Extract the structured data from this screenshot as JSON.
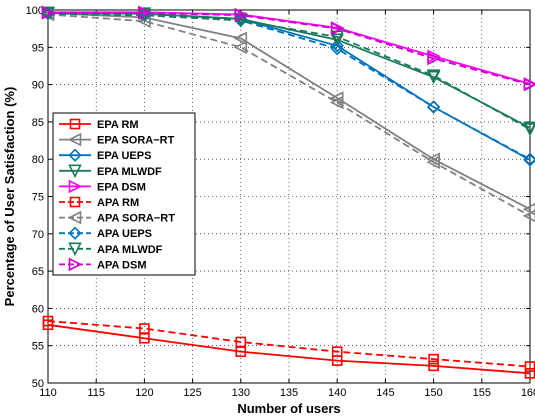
{
  "chart_data": {
    "type": "line",
    "xlabel": "Number of users",
    "ylabel": "Percentage of User Satisfaction (%)",
    "xlim": [
      110,
      160
    ],
    "ylim": [
      50,
      100
    ],
    "xticks": [
      110,
      115,
      120,
      125,
      130,
      135,
      140,
      145,
      150,
      155,
      160
    ],
    "yticks": [
      50,
      55,
      60,
      65,
      70,
      75,
      80,
      85,
      90,
      95,
      100
    ],
    "grid": true,
    "legend_position": "left",
    "x": [
      110,
      120,
      130,
      140,
      150,
      160
    ],
    "series": [
      {
        "name": "EPA RM",
        "color": "#ff0000",
        "style": "solid",
        "marker": "square",
        "values": [
          57.8,
          56.0,
          54.2,
          53.0,
          52.3,
          51.3
        ]
      },
      {
        "name": "EPA SORA−RT",
        "color": "#808080",
        "style": "solid",
        "marker": "triangle-left",
        "values": [
          99.6,
          99.0,
          96.2,
          88.2,
          80.0,
          73.3
        ]
      },
      {
        "name": "EPA UEPS",
        "color": "#0072bd",
        "style": "solid",
        "marker": "diamond",
        "values": [
          99.6,
          99.5,
          98.8,
          95.2,
          87.0,
          79.9
        ]
      },
      {
        "name": "EPA MLWDF",
        "color": "#1a7a5e",
        "style": "solid",
        "marker": "triangle-down",
        "values": [
          99.6,
          99.5,
          98.8,
          96.0,
          91.0,
          84.2
        ]
      },
      {
        "name": "EPA DSM",
        "color": "#ff00ff",
        "style": "solid",
        "marker": "triangle-right",
        "values": [
          99.7,
          99.7,
          99.4,
          97.6,
          93.8,
          90.1
        ]
      },
      {
        "name": "APA RM",
        "color": "#ff0000",
        "style": "dashed",
        "marker": "square",
        "values": [
          58.3,
          57.3,
          55.5,
          54.2,
          53.2,
          52.2
        ]
      },
      {
        "name": "APA SORA−RT",
        "color": "#808080",
        "style": "dashed",
        "marker": "triangle-left",
        "values": [
          99.4,
          98.5,
          95.0,
          87.6,
          79.6,
          72.4
        ]
      },
      {
        "name": "APA UEPS",
        "color": "#0072bd",
        "style": "dashed",
        "marker": "diamond",
        "values": [
          99.5,
          99.3,
          98.6,
          94.8,
          87.0,
          80.0
        ]
      },
      {
        "name": "APA MLWDF",
        "color": "#1a7a5e",
        "style": "dashed",
        "marker": "triangle-down",
        "values": [
          99.5,
          99.3,
          98.6,
          96.4,
          91.2,
          84.0
        ]
      },
      {
        "name": "APA DSM",
        "color": "#cc00cc",
        "style": "dashed",
        "marker": "triangle-right",
        "values": [
          99.6,
          99.6,
          99.3,
          97.5,
          93.5,
          90.0
        ]
      }
    ]
  }
}
